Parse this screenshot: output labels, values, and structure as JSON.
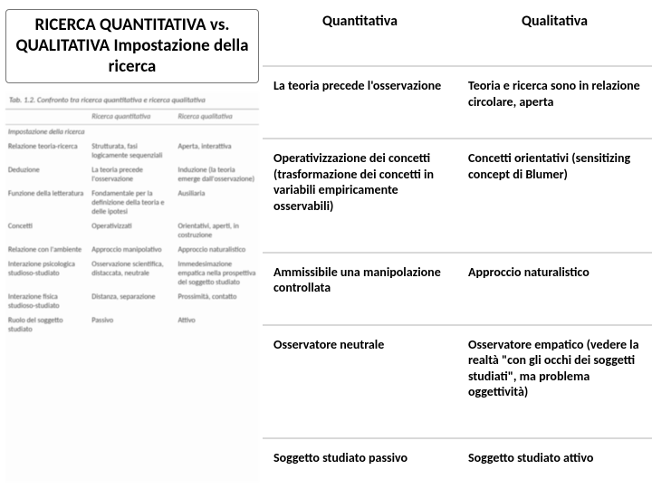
{
  "title": "RICERCA QUANTITATIVA vs. QUALITATIVA Impostazione della ricerca",
  "scan": {
    "caption": "Tab. 1.2. Confronto tra ricerca quantitativa e ricerca qualitativa",
    "col1": "",
    "col2": "Ricerca quantitativa",
    "col3": "Ricerca qualitativa",
    "section": "Impostazione della ricerca",
    "rows": [
      {
        "a": "Relazione teoria-ricerca",
        "b": "Strutturata, fasi logicamente sequenziali",
        "c": "Aperta, interattiva"
      },
      {
        "a": "Deduzione",
        "b": "La teoria precede l'osservazione",
        "c": "Induzione (la teoria emerge dall'osservazione)"
      },
      {
        "a": "Funzione della letteratura",
        "b": "Fondamentale per la definizione della teoria e delle ipotesi",
        "c": "Ausiliaria"
      },
      {
        "a": "Concetti",
        "b": "Operativizzati",
        "c": "Orientativi, aperti, in costruzione"
      },
      {
        "a": "Relazione con l'ambiente",
        "b": "Approccio manipolativo",
        "c": "Approccio naturalistico"
      },
      {
        "a": "Interazione psicologica studioso-studiato",
        "b": "Osservazione scientifica, distaccata, neutrale",
        "c": "Immedesimazione empatica nella prospettiva del soggetto studiato"
      },
      {
        "a": "Interazione fisica studioso-studiato",
        "b": "Distanza, separazione",
        "c": "Prossimità, contatto"
      },
      {
        "a": "Ruolo del soggetto studiato",
        "b": "Passivo",
        "c": "Attivo"
      }
    ]
  },
  "compare": {
    "h1": "Quantitativa",
    "h2": "Qualitativa",
    "rows": [
      {
        "q": "La teoria precede l'osservazione",
        "l": "Teoria e ricerca sono in relazione circolare, aperta"
      },
      {
        "q": "Operativizzazione dei concetti (trasformazione dei concetti in variabili empiricamente osservabili)",
        "l": "Concetti orientativi (sensitizing concept di Blumer)"
      },
      {
        "q": "Ammissibile una manipolazione controllata",
        "l": "Approccio naturalistico"
      },
      {
        "q": "Osservatore neutrale",
        "l": "Osservatore empatico (vedere la realtà \"con gli occhi dei soggetti studiati\", ma problema oggettività)"
      },
      {
        "q": "Soggetto studiato passivo",
        "l": "Soggetto studiato attivo"
      }
    ]
  }
}
